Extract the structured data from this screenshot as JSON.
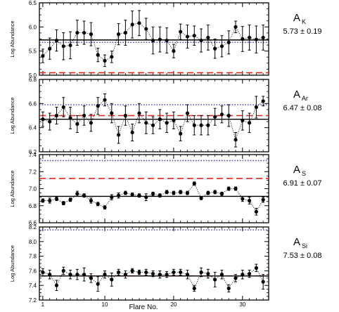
{
  "xlabel": "Flare No.",
  "ylabel": "Log Abundance",
  "chart_data": [
    {
      "type": "scatter",
      "element": "K",
      "symbol": "A",
      "sub": "K",
      "value_label": "5.73 ± 0.19",
      "ylim": [
        5.0,
        6.5
      ],
      "yticks": [
        "5.0",
        "5.5",
        "6.0",
        "6.5"
      ],
      "ytick_values": [
        5.0,
        5.5,
        6.0,
        6.5
      ],
      "mean": 5.73,
      "dashed_ref": 5.05,
      "dotted_ref": 5.68,
      "x": [
        1,
        2,
        3,
        4,
        5,
        6,
        7,
        8,
        9,
        10,
        11,
        12,
        13,
        14,
        15,
        16,
        17,
        18,
        19,
        20,
        21,
        22,
        23,
        24,
        25,
        26,
        27,
        28,
        29,
        30,
        31,
        32,
        33
      ],
      "y": [
        5.4,
        5.55,
        5.72,
        5.6,
        5.62,
        5.88,
        5.88,
        5.85,
        5.42,
        5.3,
        5.38,
        5.85,
        5.88,
        6.05,
        6.08,
        5.96,
        5.72,
        5.74,
        5.72,
        5.5,
        5.9,
        5.8,
        5.82,
        5.72,
        5.78,
        5.55,
        5.6,
        5.68,
        6.0,
        5.75,
        5.78,
        5.74,
        5.78
      ],
      "err": [
        0.14,
        0.22,
        0.22,
        0.28,
        0.28,
        0.26,
        0.24,
        0.24,
        0.14,
        0.12,
        0.12,
        0.22,
        0.26,
        0.28,
        0.26,
        0.22,
        0.28,
        0.26,
        0.26,
        0.14,
        0.16,
        0.24,
        0.2,
        0.24,
        0.26,
        0.2,
        0.22,
        0.24,
        0.12,
        0.26,
        0.26,
        0.28,
        0.26
      ]
    },
    {
      "type": "scatter",
      "element": "Ar",
      "symbol": "A",
      "sub": "Ar",
      "value_label": "6.47 ± 0.08",
      "ylim": [
        6.2,
        6.8
      ],
      "yticks": [
        "6.2",
        "6.4",
        "6.6",
        "6.8"
      ],
      "ytick_values": [
        6.2,
        6.4,
        6.6,
        6.8
      ],
      "mean": 6.47,
      "dashed_ref": 6.5,
      "dotted_ref": 6.59,
      "x": [
        1,
        2,
        3,
        4,
        5,
        6,
        7,
        8,
        9,
        10,
        11,
        12,
        13,
        14,
        15,
        16,
        17,
        18,
        19,
        20,
        21,
        22,
        23,
        24,
        25,
        26,
        27,
        28,
        29,
        30,
        31,
        32,
        33
      ],
      "y": [
        6.47,
        6.45,
        6.5,
        6.57,
        6.48,
        6.43,
        6.5,
        6.44,
        6.58,
        6.63,
        6.52,
        6.34,
        6.5,
        6.36,
        6.52,
        6.44,
        6.42,
        6.47,
        6.44,
        6.46,
        6.35,
        6.52,
        6.42,
        6.42,
        6.42,
        6.49,
        6.51,
        6.5,
        6.3,
        6.46,
        6.44,
        6.57,
        6.62
      ],
      "err": [
        0.06,
        0.07,
        0.07,
        0.08,
        0.09,
        0.07,
        0.08,
        0.07,
        0.07,
        0.05,
        0.08,
        0.07,
        0.08,
        0.07,
        0.08,
        0.09,
        0.07,
        0.08,
        0.08,
        0.07,
        0.06,
        0.07,
        0.08,
        0.08,
        0.08,
        0.07,
        0.07,
        0.09,
        0.06,
        0.08,
        0.08,
        0.09,
        0.04
      ]
    },
    {
      "type": "scatter",
      "element": "S",
      "symbol": "A",
      "sub": "S",
      "value_label": "6.91 ± 0.07",
      "ylim": [
        6.6,
        7.4
      ],
      "yticks": [
        "6.6",
        "6.8",
        "7.0",
        "7.2",
        "7.4"
      ],
      "ytick_values": [
        6.6,
        6.8,
        7.0,
        7.2,
        7.4
      ],
      "mean": 6.91,
      "dashed_ref": 7.12,
      "dotted_ref": 7.33,
      "x": [
        1,
        2,
        3,
        4,
        5,
        6,
        7,
        8,
        9,
        10,
        11,
        12,
        13,
        14,
        15,
        16,
        17,
        18,
        19,
        20,
        21,
        22,
        23,
        24,
        25,
        26,
        27,
        28,
        29,
        30,
        31,
        32,
        33
      ],
      "y": [
        6.86,
        6.86,
        6.88,
        6.83,
        6.87,
        6.94,
        6.92,
        6.86,
        6.82,
        6.78,
        6.9,
        6.92,
        6.95,
        6.93,
        6.92,
        6.9,
        6.94,
        6.92,
        6.96,
        6.95,
        6.96,
        6.95,
        7.06,
        6.89,
        6.95,
        6.96,
        6.94,
        7.0,
        7.0,
        6.88,
        6.86,
        6.73,
        6.87
      ],
      "err": [
        0.02,
        0.03,
        0.02,
        0.02,
        0.02,
        0.03,
        0.02,
        0.03,
        0.02,
        0.02,
        0.03,
        0.03,
        0.02,
        0.02,
        0.02,
        0.04,
        0.02,
        0.02,
        0.02,
        0.02,
        0.02,
        0.02,
        0.02,
        0.02,
        0.02,
        0.02,
        0.02,
        0.02,
        0.02,
        0.03,
        0.04,
        0.04,
        0.03
      ]
    },
    {
      "type": "scatter",
      "element": "Si",
      "symbol": "A",
      "sub": "Si",
      "value_label": "7.53 ± 0.08",
      "ylim": [
        7.2,
        8.2
      ],
      "yticks": [
        "7.2",
        "7.4",
        "7.6",
        "7.8",
        "8.0",
        "8.2"
      ],
      "ytick_values": [
        7.2,
        7.4,
        7.6,
        7.8,
        8.0,
        8.2
      ],
      "mean": 7.53,
      "dashed_ref": 7.53,
      "dotted_ref": 8.16,
      "x": [
        1,
        2,
        3,
        4,
        5,
        6,
        7,
        8,
        9,
        10,
        11,
        12,
        13,
        14,
        15,
        16,
        17,
        18,
        19,
        20,
        21,
        22,
        23,
        24,
        25,
        26,
        27,
        28,
        29,
        30,
        31,
        32,
        33
      ],
      "y": [
        7.58,
        7.55,
        7.4,
        7.6,
        7.55,
        7.55,
        7.55,
        7.5,
        7.42,
        7.55,
        7.48,
        7.58,
        7.55,
        7.6,
        7.58,
        7.58,
        7.56,
        7.55,
        7.55,
        7.58,
        7.58,
        7.55,
        7.36,
        7.58,
        7.56,
        7.48,
        7.55,
        7.36,
        7.5,
        7.55,
        7.56,
        7.64,
        7.45
      ],
      "err": [
        0.05,
        0.06,
        0.07,
        0.05,
        0.06,
        0.07,
        0.09,
        0.06,
        0.1,
        0.05,
        0.09,
        0.04,
        0.05,
        0.03,
        0.03,
        0.04,
        0.04,
        0.05,
        0.04,
        0.04,
        0.04,
        0.06,
        0.04,
        0.06,
        0.06,
        0.1,
        0.06,
        0.05,
        0.05,
        0.06,
        0.05,
        0.05,
        0.1
      ]
    }
  ],
  "xaxis": {
    "xlim": [
      0.5,
      33.8
    ],
    "xticks": [
      "1",
      "10",
      "20",
      "30"
    ],
    "xtick_values": [
      1,
      10,
      20,
      30
    ]
  },
  "colors": {
    "points": "#000000",
    "mean_line": "#000000",
    "dashed_ref": "#e2261d",
    "dotted_ref": "#3a36a8"
  }
}
